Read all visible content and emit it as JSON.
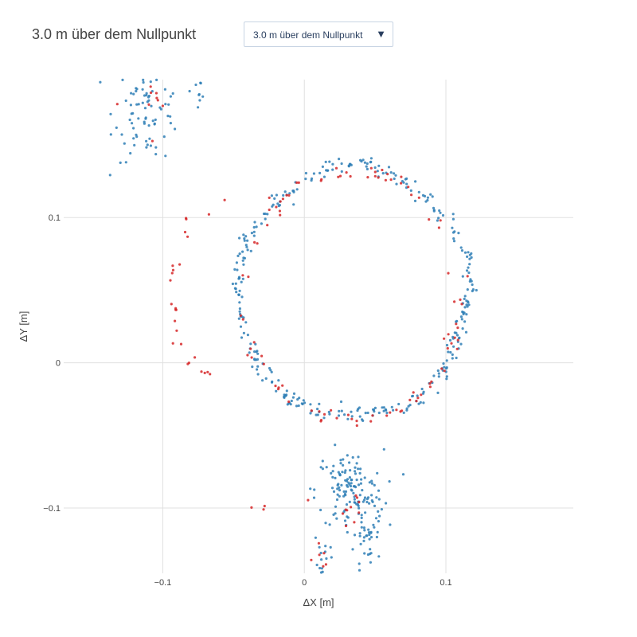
{
  "header": {
    "title": "3.0 m über dem Nullpunkt",
    "dropdown_selected": "3.0 m über dem Nullpunkt"
  },
  "colors": {
    "series_blue": "#2f7fb6",
    "series_red": "#d62728",
    "grid": "#e0e0e0",
    "text": "#444444"
  },
  "icons": {
    "dropdown_arrow": "triangle-down-icon"
  },
  "chart_data": {
    "type": "scatter",
    "title": "",
    "xlabel": "ΔX [m]",
    "ylabel": "ΔY [m]",
    "xlim": [
      -0.17,
      0.19
    ],
    "ylim": [
      -0.145,
      0.195
    ],
    "xticks": [
      -0.1,
      0,
      0.1
    ],
    "xtick_labels": [
      "−0.1",
      "0",
      "0.1"
    ],
    "yticks": [
      -0.1,
      0,
      0.1
    ],
    "ytick_labels": [
      "−0.1",
      "0",
      "0.1"
    ],
    "grid": true,
    "legend": "none",
    "series": [
      {
        "color": "#2f7fb6",
        "groups": [
          {
            "shape": "ellipse",
            "center": [
              0.035,
              0.049
            ],
            "rx": 0.081,
            "ry": 0.086,
            "n": 340,
            "jitter": 0.0025
          },
          {
            "shape": "blob",
            "center": [
              -0.11,
              0.175
            ],
            "spread": [
              0.012,
              0.018
            ],
            "n": 90
          },
          {
            "shape": "blob",
            "center": [
              -0.074,
              0.188
            ],
            "spread": [
              0.002,
              0.003
            ],
            "n": 8
          },
          {
            "shape": "blob",
            "center": [
              0.032,
              -0.088
            ],
            "spread": [
              0.012,
              0.014
            ],
            "n": 130
          },
          {
            "shape": "blob",
            "center": [
              0.045,
              -0.12
            ],
            "spread": [
              0.005,
              0.014
            ],
            "n": 40
          },
          {
            "shape": "blob",
            "center": [
              0.012,
              -0.135
            ],
            "spread": [
              0.003,
              0.01
            ],
            "n": 20
          }
        ]
      },
      {
        "color": "#d62728",
        "groups": [
          {
            "shape": "arc",
            "center": [
              0.033,
              0.046
            ],
            "rx": 0.076,
            "ry": 0.086,
            "from_deg": -110,
            "to_deg": 250,
            "n": 95,
            "jitter": 0.003
          },
          {
            "shape": "arc",
            "center": [
              -0.05,
              0.05
            ],
            "rx": 0.045,
            "ry": 0.065,
            "from_deg": 100,
            "to_deg": 250,
            "n": 26,
            "jitter": 0.004
          },
          {
            "shape": "blob",
            "center": [
              -0.105,
              0.185
            ],
            "spread": [
              0.015,
              0.01
            ],
            "n": 10
          },
          {
            "shape": "blob",
            "center": [
              0.033,
              -0.102
            ],
            "spread": [
              0.004,
              0.006
            ],
            "n": 10
          },
          {
            "shape": "blob",
            "center": [
              0.012,
              -0.138
            ],
            "spread": [
              0.003,
              0.006
            ],
            "n": 6
          },
          {
            "shape": "blob",
            "center": [
              -0.02,
              -0.095
            ],
            "spread": [
              0.01,
              0.01
            ],
            "n": 4
          }
        ]
      }
    ]
  }
}
